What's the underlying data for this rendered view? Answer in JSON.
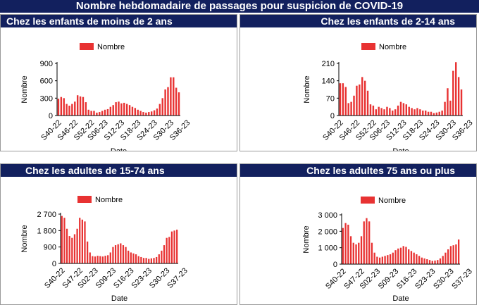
{
  "title": "Nombre hebdomadaire de passages pour suspicion de COVID-19",
  "colors": {
    "header_bg": "#12205e",
    "bar": "#e83232",
    "axis": "#000000"
  },
  "chart_data": [
    {
      "type": "bar",
      "title": "Chez les enfants de moins de 2 ans",
      "legend": "Nombre",
      "xlabel": "Date",
      "ylabel": "Nombre",
      "ylim": [
        0,
        900
      ],
      "yticks": [
        "0",
        "300",
        "600",
        "900"
      ],
      "ytick_values": [
        0,
        300,
        600,
        900
      ],
      "xtick_labels": [
        "S40-22",
        "S46-22",
        "S52-22",
        "S06-23",
        "S12-23",
        "S18-23",
        "S24-23",
        "S30-23",
        "S36-23"
      ],
      "xtick_index": [
        0,
        6,
        12,
        17,
        23,
        29,
        35,
        41,
        47
      ],
      "values": [
        290,
        320,
        300,
        200,
        170,
        200,
        240,
        350,
        330,
        320,
        230,
        100,
        80,
        80,
        50,
        60,
        80,
        100,
        110,
        150,
        180,
        230,
        240,
        210,
        220,
        200,
        180,
        150,
        130,
        100,
        80,
        60,
        50,
        60,
        70,
        90,
        120,
        200,
        300,
        450,
        490,
        660,
        660,
        480,
        400
      ]
    },
    {
      "type": "bar",
      "title": "Chez les enfants de 2-14 ans",
      "legend": "Nombre",
      "xlabel": "Date",
      "ylabel": "Nombre",
      "ylim": [
        0,
        210
      ],
      "yticks": [
        "0",
        "70",
        "140",
        "210"
      ],
      "ytick_values": [
        0,
        70,
        140,
        210
      ],
      "xtick_labels": [
        "S40-22",
        "S46-22",
        "S52-22",
        "S06-23",
        "S12-23",
        "S18-23",
        "S24-23",
        "S30-23",
        "S36-23"
      ],
      "xtick_index": [
        0,
        6,
        12,
        17,
        23,
        29,
        35,
        41,
        47
      ],
      "values": [
        130,
        130,
        115,
        50,
        55,
        80,
        120,
        125,
        155,
        140,
        100,
        45,
        40,
        25,
        35,
        30,
        25,
        35,
        30,
        20,
        25,
        40,
        55,
        50,
        45,
        35,
        30,
        25,
        30,
        25,
        20,
        20,
        15,
        15,
        10,
        12,
        15,
        20,
        55,
        110,
        60,
        180,
        215,
        155,
        105
      ]
    },
    {
      "type": "bar",
      "title": "Chez les adultes de 15-74 ans",
      "legend": "Nombre",
      "xlabel": "Date",
      "ylabel": "Nombre",
      "ylim": [
        0,
        2700
      ],
      "yticks": [
        "0",
        "900",
        "1 800",
        "2 700"
      ],
      "ytick_values": [
        0,
        900,
        1800,
        2700
      ],
      "xtick_labels": [
        "S40-22",
        "S47-22",
        "S02-23",
        "S09-23",
        "S16-23",
        "S23-23",
        "S30-23",
        "S37-23"
      ],
      "xtick_index": [
        0,
        7,
        13,
        20,
        27,
        34,
        41,
        48
      ],
      "values": [
        2600,
        2500,
        1900,
        1500,
        1400,
        1600,
        1900,
        2500,
        2400,
        2300,
        1200,
        600,
        400,
        380,
        420,
        400,
        380,
        420,
        450,
        600,
        900,
        1000,
        1050,
        1100,
        1000,
        900,
        700,
        600,
        550,
        500,
        400,
        350,
        300,
        300,
        250,
        280,
        300,
        350,
        500,
        700,
        1000,
        1400,
        1450,
        1750,
        1800,
        1850
      ]
    },
    {
      "type": "bar",
      "title": "Chez les adultes 75 ans ou plus",
      "legend": "Nombre",
      "xlabel": "Date",
      "ylabel": "Nombre",
      "ylim": [
        0,
        3000
      ],
      "yticks": [
        "0",
        "1 000",
        "2 000",
        "3 000"
      ],
      "ytick_values": [
        0,
        1000,
        2000,
        3000
      ],
      "xtick_labels": [
        "S40-22",
        "S47-22",
        "S02-23",
        "S09-23",
        "S16-23",
        "S23-23",
        "S30-23",
        "S37-23"
      ],
      "xtick_index": [
        0,
        7,
        13,
        20,
        27,
        34,
        41,
        48
      ],
      "values": [
        2200,
        2500,
        2400,
        1700,
        1300,
        1200,
        1300,
        1700,
        2600,
        2800,
        2600,
        1300,
        700,
        450,
        400,
        450,
        500,
        550,
        600,
        700,
        850,
        950,
        1000,
        1100,
        1050,
        900,
        800,
        700,
        600,
        500,
        400,
        350,
        300,
        250,
        200,
        220,
        250,
        350,
        500,
        700,
        900,
        1100,
        1150,
        1200,
        1500
      ]
    }
  ]
}
